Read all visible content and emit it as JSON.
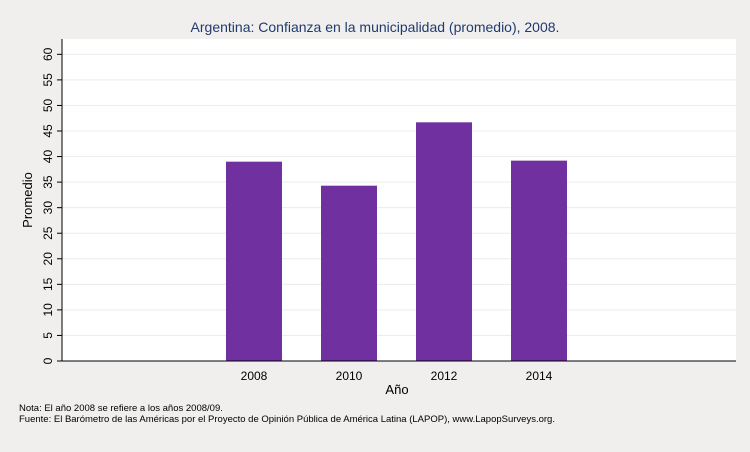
{
  "chart_data": {
    "type": "bar",
    "title": "Argentina: Confianza en la municipalidad (promedio), 2008.",
    "xlabel": "Año",
    "ylabel": "Promedio",
    "categories": [
      "2008",
      "2010",
      "2012",
      "2014"
    ],
    "values": [
      39.0,
      34.3,
      46.7,
      39.2
    ],
    "ylim": [
      0,
      63
    ],
    "yticks": [
      0,
      5,
      10,
      15,
      20,
      25,
      30,
      35,
      40,
      45,
      50,
      55,
      60
    ],
    "grid": true,
    "bar_color": "#7030a0"
  },
  "notes": {
    "line1": "Nota: El año 2008 se refiere a los años 2008/09.",
    "line2": "Fuente: El Barómetro de las Américas por el Proyecto de Opinión Pública de América Latina (LAPOP), www.LapopSurveys.org."
  }
}
